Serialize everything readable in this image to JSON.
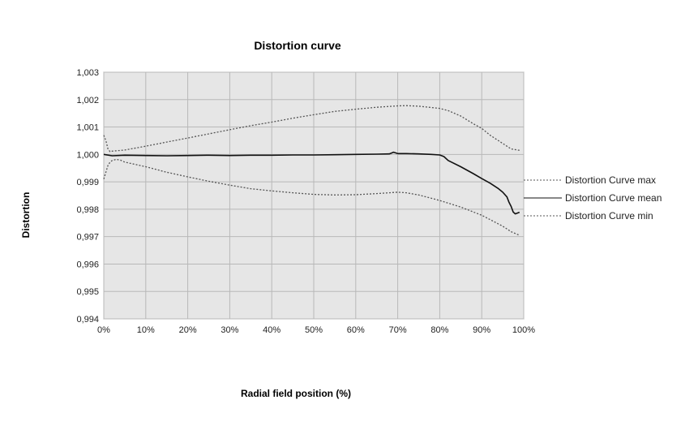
{
  "chart_data": {
    "type": "line",
    "title": "Distortion curve",
    "xlabel": "Radial field position (%)",
    "ylabel": "Distortion",
    "xlim": [
      0,
      100
    ],
    "ylim": [
      0.994,
      1.003
    ],
    "x_ticks": [
      0,
      10,
      20,
      30,
      40,
      50,
      60,
      70,
      80,
      90,
      100
    ],
    "x_tick_labels": [
      "0%",
      "10%",
      "20%",
      "30%",
      "40%",
      "50%",
      "60%",
      "70%",
      "80%",
      "90%",
      "100%"
    ],
    "y_ticks": [
      0.994,
      0.995,
      0.996,
      0.997,
      0.998,
      0.999,
      1.0,
      1.001,
      1.002,
      1.003
    ],
    "y_tick_labels": [
      "0,994",
      "0,995",
      "0,996",
      "0,997",
      "0,998",
      "0,999",
      "1,000",
      "1,001",
      "1,002",
      "1,003"
    ],
    "grid": true,
    "legend_position": "right",
    "plot_background": "#e6e6e6",
    "grid_color": "#b8b8b8",
    "series": [
      {
        "name": "Distortion Curve max",
        "style": "dotted",
        "color": "#555555",
        "x": [
          0,
          0.5,
          1,
          1.5,
          2,
          5,
          10,
          15,
          20,
          25,
          30,
          35,
          40,
          45,
          50,
          55,
          60,
          65,
          70,
          72,
          75,
          80,
          82,
          85,
          88,
          90,
          92,
          95,
          97,
          99
        ],
        "y": [
          1.0007,
          1.0005,
          1.0002,
          1.0001,
          1.00012,
          1.00016,
          1.0003,
          1.00045,
          1.0006,
          1.00075,
          1.0009,
          1.00105,
          1.00118,
          1.00132,
          1.00145,
          1.00157,
          1.00165,
          1.00172,
          1.00177,
          1.00178,
          1.00176,
          1.00168,
          1.0016,
          1.0014,
          1.00112,
          1.00095,
          1.0007,
          1.0004,
          1.0002,
          1.00015
        ]
      },
      {
        "name": "Distortion Curve mean",
        "style": "solid",
        "color": "#111111",
        "x": [
          0,
          2,
          5,
          10,
          15,
          20,
          25,
          30,
          35,
          40,
          45,
          50,
          55,
          60,
          65,
          68,
          69,
          70,
          72,
          75,
          78,
          80,
          81,
          82,
          85,
          88,
          90,
          92,
          94,
          95,
          96,
          96.5,
          97,
          97.5,
          98,
          98.5,
          99
        ],
        "y": [
          1.0,
          0.99995,
          0.99997,
          0.99996,
          0.99995,
          0.99996,
          0.99997,
          0.99996,
          0.99997,
          0.99997,
          0.99998,
          0.99998,
          0.99999,
          1.0,
          1.00001,
          1.00002,
          1.00008,
          1.00003,
          1.00003,
          1.00002,
          1.0,
          0.99998,
          0.99992,
          0.99978,
          0.99955,
          0.9993,
          0.99912,
          0.99895,
          0.99875,
          0.99862,
          0.99845,
          0.99825,
          0.9981,
          0.9979,
          0.99783,
          0.99786,
          0.99789
        ]
      },
      {
        "name": "Distortion Curve min",
        "style": "dotted",
        "color": "#555555",
        "x": [
          0,
          0.5,
          1,
          1.5,
          2,
          3,
          4,
          5,
          10,
          15,
          20,
          25,
          30,
          35,
          40,
          45,
          50,
          55,
          60,
          65,
          70,
          72,
          75,
          80,
          85,
          90,
          92,
          95,
          97,
          99
        ],
        "y": [
          0.9991,
          0.99935,
          0.9996,
          0.99972,
          0.99978,
          0.99982,
          0.99979,
          0.99972,
          0.99955,
          0.99935,
          0.99918,
          0.99902,
          0.99888,
          0.99875,
          0.99867,
          0.9986,
          0.99854,
          0.99852,
          0.99853,
          0.99857,
          0.99862,
          0.9986,
          0.99852,
          0.99832,
          0.99808,
          0.99778,
          0.99762,
          0.99738,
          0.99718,
          0.99705
        ]
      }
    ]
  }
}
